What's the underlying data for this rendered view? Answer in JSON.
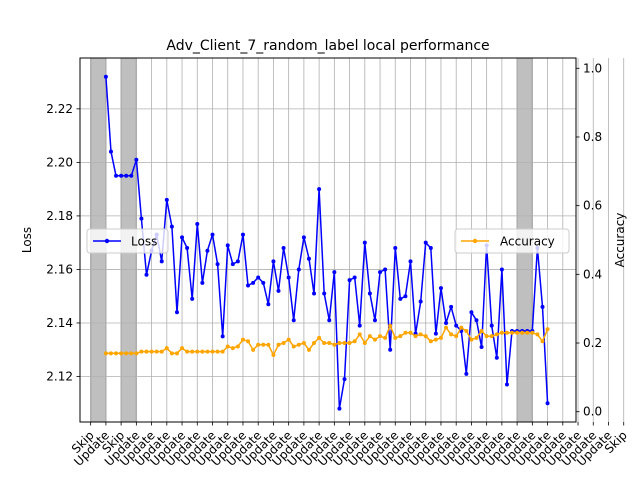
{
  "chart_data": {
    "type": "line",
    "title": "Adv_Client_7_random_label local performance",
    "xlabel": "",
    "ylabel_left": "Loss",
    "ylabel_right": "Accuracy",
    "ylim_left": [
      2.103,
      2.239
    ],
    "ylim_right": [
      -0.03,
      1.03
    ],
    "left_ticks": [
      "2.12",
      "2.14",
      "2.16",
      "2.18",
      "2.20",
      "2.22"
    ],
    "right_ticks": [
      "0.0",
      "0.2",
      "0.4",
      "0.6",
      "0.8",
      "1.0"
    ],
    "x_tick_labels": [
      "Skip",
      "Update",
      "Skip",
      "Update",
      "Update",
      "Update",
      "Update",
      "Update",
      "Update",
      "Update",
      "Update",
      "Update",
      "Update",
      "Update",
      "Update",
      "Update",
      "Update",
      "Update",
      "Update",
      "Update",
      "Update",
      "Update",
      "Update",
      "Update",
      "Update",
      "Update",
      "Update",
      "Update",
      "Update",
      "Update",
      "Update",
      "Update",
      "Update",
      "Update",
      "Update",
      "Skip"
    ],
    "skip_regions": [
      [
        -3,
        0
      ],
      [
        3,
        6
      ],
      [
        81,
        84
      ]
    ],
    "grid": true,
    "legend_loss_position": "center-left",
    "legend_accuracy_position": "center-right",
    "series": [
      {
        "name": "Loss",
        "axis": "left",
        "color": "#0000ff",
        "x": [
          0,
          1,
          2,
          3,
          4,
          5,
          6,
          7,
          8,
          9,
          10,
          11,
          12,
          13,
          14,
          15,
          16,
          17,
          18,
          19,
          20,
          21,
          22,
          23,
          24,
          25,
          26,
          27,
          28,
          29,
          30,
          31,
          32,
          33,
          34,
          35,
          36,
          37,
          38,
          39,
          40,
          41,
          42,
          43,
          44,
          45,
          46,
          47,
          48,
          49,
          50,
          51,
          52,
          53,
          54,
          55,
          56,
          57,
          58,
          59,
          60,
          61,
          62,
          63,
          64,
          65,
          66,
          67,
          68,
          69,
          70,
          71,
          72,
          73,
          74,
          75,
          76,
          77,
          78,
          79,
          80,
          81,
          82,
          83,
          84,
          85,
          86,
          87
        ],
        "values": [
          2.232,
          2.204,
          2.195,
          2.195,
          2.195,
          2.195,
          2.201,
          2.179,
          2.158,
          2.167,
          2.173,
          2.163,
          2.186,
          2.176,
          2.144,
          2.172,
          2.168,
          2.149,
          2.177,
          2.155,
          2.167,
          2.173,
          2.162,
          2.135,
          2.169,
          2.162,
          2.163,
          2.173,
          2.154,
          2.155,
          2.157,
          2.155,
          2.147,
          2.163,
          2.152,
          2.168,
          2.157,
          2.141,
          2.16,
          2.172,
          2.164,
          2.151,
          2.19,
          2.151,
          2.141,
          2.159,
          2.108,
          2.119,
          2.156,
          2.157,
          2.139,
          2.17,
          2.151,
          2.141,
          2.159,
          2.16,
          2.13,
          2.168,
          2.149,
          2.15,
          2.163,
          2.136,
          2.148,
          2.17,
          2.168,
          2.136,
          2.153,
          2.14,
          2.146,
          2.139,
          2.137,
          2.121,
          2.144,
          2.141,
          2.131,
          2.169,
          2.139,
          2.127,
          2.16,
          2.117,
          2.137,
          2.137,
          2.137,
          2.137,
          2.137,
          2.168,
          2.146,
          2.11
        ]
      },
      {
        "name": "Accuracy",
        "axis": "right",
        "color": "#ffa500",
        "x": [
          0,
          1,
          2,
          3,
          4,
          5,
          6,
          7,
          8,
          9,
          10,
          11,
          12,
          13,
          14,
          15,
          16,
          17,
          18,
          19,
          20,
          21,
          22,
          23,
          24,
          25,
          26,
          27,
          28,
          29,
          30,
          31,
          32,
          33,
          34,
          35,
          36,
          37,
          38,
          39,
          40,
          41,
          42,
          43,
          44,
          45,
          46,
          47,
          48,
          49,
          50,
          51,
          52,
          53,
          54,
          55,
          56,
          57,
          58,
          59,
          60,
          61,
          62,
          63,
          64,
          65,
          66,
          67,
          68,
          69,
          70,
          71,
          72,
          73,
          74,
          75,
          76,
          77,
          78,
          79,
          80,
          81,
          82,
          83,
          84,
          85,
          86,
          87
        ],
        "values": [
          0.17,
          0.17,
          0.17,
          0.17,
          0.17,
          0.17,
          0.17,
          0.175,
          0.175,
          0.175,
          0.175,
          0.175,
          0.185,
          0.17,
          0.17,
          0.185,
          0.175,
          0.175,
          0.175,
          0.175,
          0.175,
          0.175,
          0.175,
          0.175,
          0.19,
          0.185,
          0.19,
          0.21,
          0.205,
          0.18,
          0.195,
          0.195,
          0.195,
          0.165,
          0.195,
          0.2,
          0.21,
          0.19,
          0.195,
          0.2,
          0.18,
          0.2,
          0.215,
          0.2,
          0.2,
          0.195,
          0.2,
          0.2,
          0.2,
          0.205,
          0.225,
          0.2,
          0.22,
          0.21,
          0.22,
          0.215,
          0.25,
          0.215,
          0.22,
          0.23,
          0.23,
          0.22,
          0.225,
          0.22,
          0.205,
          0.21,
          0.215,
          0.245,
          0.225,
          0.22,
          0.245,
          0.235,
          0.21,
          0.215,
          0.235,
          0.22,
          0.22,
          0.225,
          0.23,
          0.23,
          0.23,
          0.23,
          0.23,
          0.23,
          0.23,
          0.225,
          0.205,
          0.24
        ]
      }
    ]
  }
}
